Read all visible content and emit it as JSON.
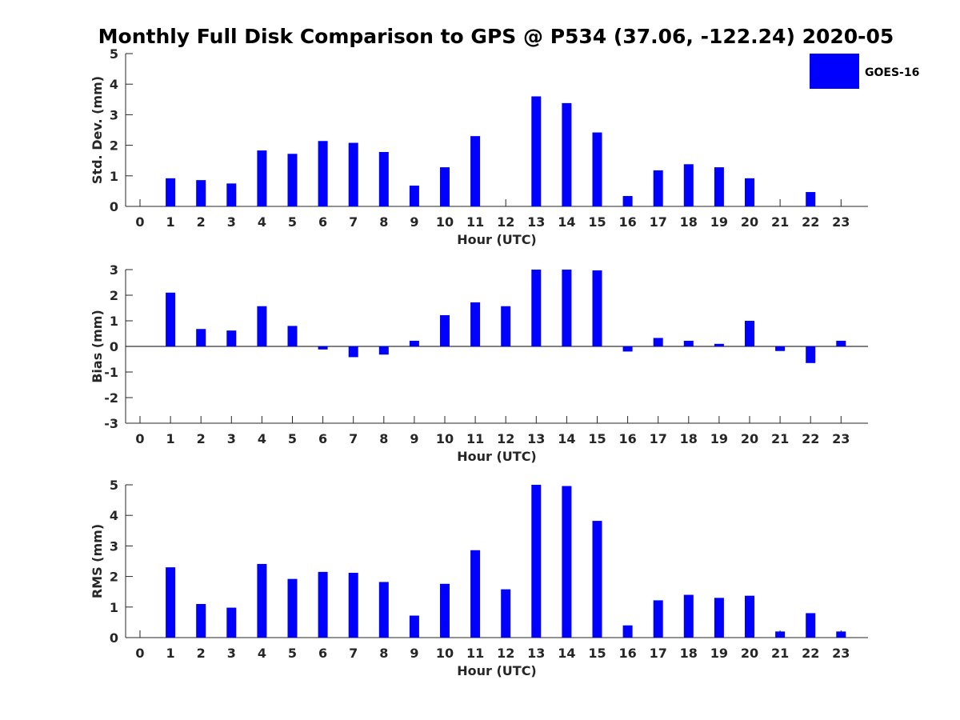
{
  "title": "Monthly Full Disk Comparison to GPS @ P534 (37.06, -122.24) 2020-05",
  "legend": {
    "label": "GOES-16",
    "color": "#0000ff"
  },
  "chart_data": [
    {
      "type": "bar",
      "title": "Monthly Full Disk Comparison to GPS @ P534 (37.06, -122.24) 2020-05",
      "xlabel": "Hour (UTC)",
      "ylabel": "Std. Dev. (mm)",
      "ylim": [
        0,
        5
      ],
      "yticks": [
        0,
        1,
        2,
        3,
        4,
        5
      ],
      "categories": [
        "0",
        "1",
        "2",
        "3",
        "4",
        "5",
        "6",
        "7",
        "8",
        "9",
        "10",
        "11",
        "12",
        "13",
        "14",
        "15",
        "16",
        "17",
        "18",
        "19",
        "20",
        "21",
        "22",
        "23"
      ],
      "series": [
        {
          "name": "GOES-16",
          "color": "#0000ff",
          "values": [
            null,
            0.92,
            0.86,
            0.75,
            1.83,
            1.72,
            2.14,
            2.08,
            1.78,
            0.68,
            1.28,
            2.3,
            null,
            3.6,
            3.38,
            2.42,
            0.34,
            1.18,
            1.38,
            1.28,
            0.92,
            null,
            0.47,
            null
          ]
        }
      ]
    },
    {
      "type": "bar",
      "xlabel": "Hour (UTC)",
      "ylabel": "Bias (mm)",
      "ylim": [
        -3,
        3
      ],
      "yticks": [
        -3,
        -2,
        -1,
        0,
        1,
        2,
        3
      ],
      "categories": [
        "0",
        "1",
        "2",
        "3",
        "4",
        "5",
        "6",
        "7",
        "8",
        "9",
        "10",
        "11",
        "12",
        "13",
        "14",
        "15",
        "16",
        "17",
        "18",
        "19",
        "20",
        "21",
        "22",
        "23"
      ],
      "series": [
        {
          "name": "GOES-16",
          "color": "#0000ff",
          "values": [
            null,
            2.1,
            0.68,
            0.62,
            1.57,
            0.8,
            -0.12,
            -0.42,
            -0.32,
            0.22,
            1.22,
            1.72,
            1.57,
            3.0,
            3.0,
            2.97,
            -0.2,
            0.33,
            0.22,
            0.1,
            1.0,
            -0.18,
            -0.65,
            0.22
          ]
        }
      ]
    },
    {
      "type": "bar",
      "xlabel": "Hour (UTC)",
      "ylabel": "RMS (mm)",
      "ylim": [
        0,
        5
      ],
      "yticks": [
        0,
        1,
        2,
        3,
        4,
        5
      ],
      "categories": [
        "0",
        "1",
        "2",
        "3",
        "4",
        "5",
        "6",
        "7",
        "8",
        "9",
        "10",
        "11",
        "12",
        "13",
        "14",
        "15",
        "16",
        "17",
        "18",
        "19",
        "20",
        "21",
        "22",
        "23"
      ],
      "series": [
        {
          "name": "GOES-16",
          "color": "#0000ff",
          "values": [
            null,
            2.3,
            1.1,
            0.98,
            2.41,
            1.92,
            2.15,
            2.12,
            1.82,
            0.72,
            1.76,
            2.86,
            1.58,
            5.0,
            4.96,
            3.82,
            0.4,
            1.22,
            1.4,
            1.3,
            1.37,
            0.2,
            0.8,
            0.2
          ]
        }
      ]
    }
  ]
}
